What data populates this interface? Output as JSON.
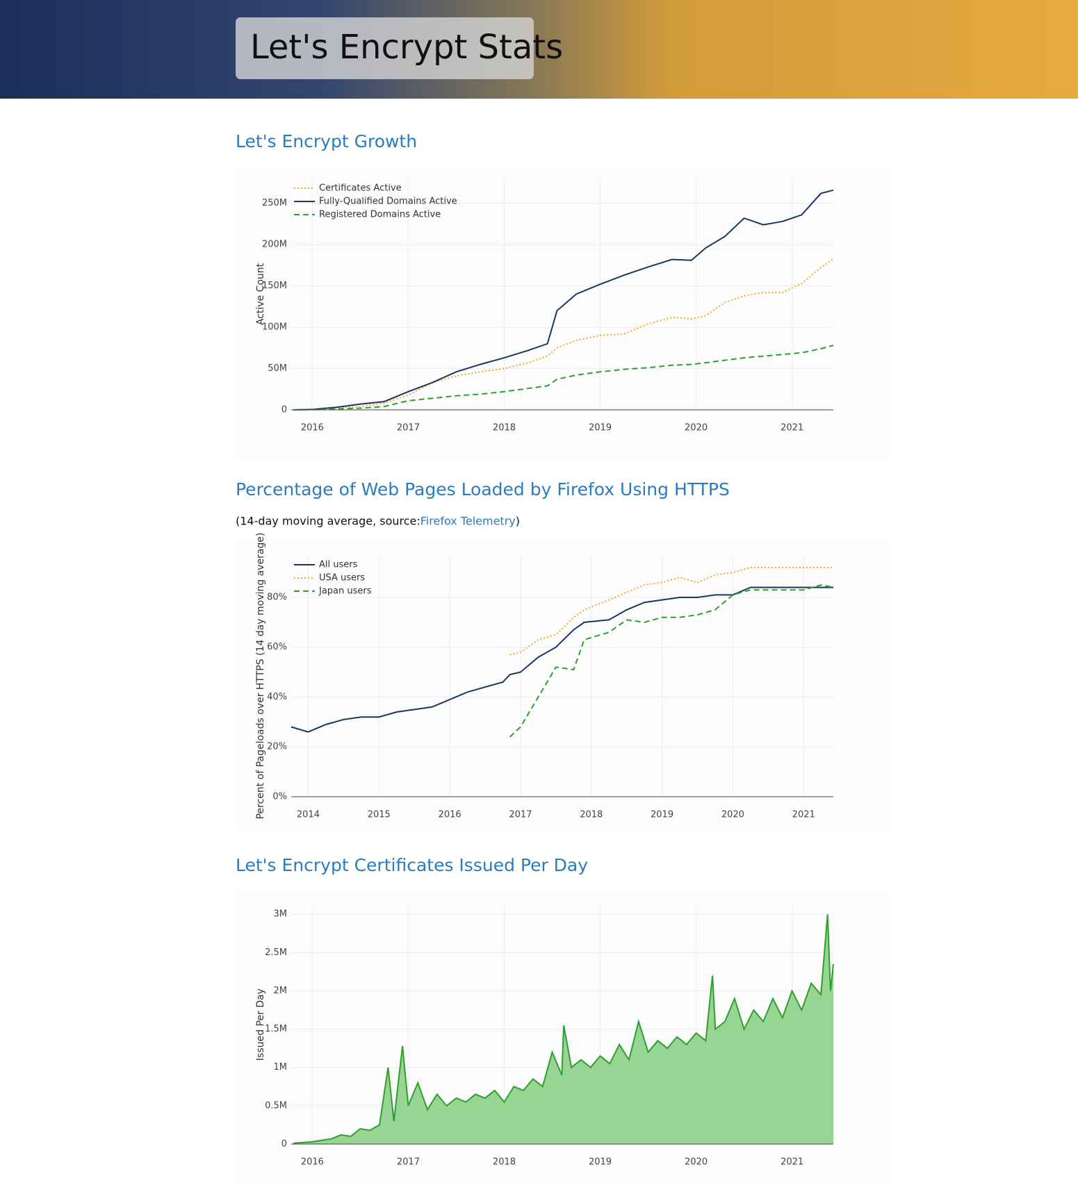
{
  "header": {
    "title": "Let's Encrypt Stats"
  },
  "chart_data": [
    {
      "type": "line",
      "title": "Let's Encrypt Growth",
      "y_label": "Active Count",
      "x": [
        2015.8,
        2016,
        2016.25,
        2016.5,
        2016.75,
        2017,
        2017.25,
        2017.5,
        2017.75,
        2018,
        2018.25,
        2018.45,
        2018.55,
        2018.75,
        2019,
        2019.25,
        2019.5,
        2019.75,
        2019.95,
        2020.1,
        2020.3,
        2020.5,
        2020.7,
        2020.9,
        2021.1,
        2021.3,
        2021.43
      ],
      "xlim": [
        2015.78,
        2021.43
      ],
      "xticks": [
        2016,
        2017,
        2018,
        2019,
        2020,
        2021
      ],
      "ylim": [
        0,
        280000000
      ],
      "yticks": [
        0,
        {
          "value": 50000000,
          "label": "50M"
        },
        {
          "value": 100000000,
          "label": "100M"
        },
        {
          "value": 150000000,
          "label": "150M"
        },
        {
          "value": 200000000,
          "label": "200M"
        },
        {
          "value": 250000000,
          "label": "250M"
        }
      ],
      "grid": true,
      "legend": "top-left",
      "series": [
        {
          "name": "Certificates Active",
          "color": "#f5a623",
          "dash": "dot",
          "values": [
            0,
            300000,
            2000000,
            4000000,
            8000000,
            18000000,
            33000000,
            41000000,
            46000000,
            50000000,
            57000000,
            65000000,
            75000000,
            84000000,
            90000000,
            92000000,
            104000000,
            112000000,
            110000000,
            114000000,
            130000000,
            138000000,
            142000000,
            142000000,
            153000000,
            172000000,
            183000000
          ]
        },
        {
          "name": "Fully-Qualified Domains Active",
          "color": "#1b365d",
          "dash": "solid",
          "values": [
            0,
            500000,
            3000000,
            7000000,
            10000000,
            22000000,
            33000000,
            46000000,
            55000000,
            63000000,
            72000000,
            80000000,
            120000000,
            140000000,
            152000000,
            163000000,
            173000000,
            182000000,
            181000000,
            196000000,
            210000000,
            232000000,
            224000000,
            228000000,
            236000000,
            262000000,
            266000000
          ]
        },
        {
          "name": "Registered Domains Active",
          "color": "#2ca02c",
          "dash": "dash",
          "values": [
            0,
            200000,
            1000000,
            2000000,
            4000000,
            11000000,
            14000000,
            17000000,
            19000000,
            22000000,
            26000000,
            29000000,
            37000000,
            42000000,
            46000000,
            49000000,
            51000000,
            54000000,
            55000000,
            57000000,
            60000000,
            63000000,
            65000000,
            67000000,
            69000000,
            74000000,
            78000000
          ]
        }
      ]
    },
    {
      "type": "line",
      "title": "Percentage of Web Pages Loaded by Firefox Using HTTPS",
      "subtitle": "(14-day moving average, source: ",
      "subtitle_link": "Firefox Telemetry",
      "subtitle_end": ")",
      "y_label": "Percent of Pageloads over HTTPS (14 day moving average)",
      "x": [
        2013.76,
        2014,
        2014.25,
        2014.5,
        2014.75,
        2015,
        2015.25,
        2015.5,
        2015.75,
        2016,
        2016.25,
        2016.5,
        2016.75,
        2016.85,
        2017,
        2017.25,
        2017.5,
        2017.75,
        2017.9,
        2018.25,
        2018.5,
        2018.75,
        2019,
        2019.25,
        2019.5,
        2019.75,
        2020,
        2020.25,
        2020.5,
        2020.75,
        2021,
        2021.25,
        2021.42
      ],
      "xlim": [
        2013.76,
        2021.42
      ],
      "xticks": [
        2014,
        2015,
        2016,
        2017,
        2018,
        2019,
        2020,
        2021
      ],
      "ylim": [
        0,
        97
      ],
      "yticks": [
        {
          "value": 0,
          "label": "0%"
        },
        {
          "value": 20,
          "label": "20%"
        },
        {
          "value": 40,
          "label": "40%"
        },
        {
          "value": 60,
          "label": "60%"
        },
        {
          "value": 80,
          "label": "80%"
        }
      ],
      "grid": true,
      "legend": "top-left",
      "series": [
        {
          "name": "All users",
          "color": "#1b365d",
          "dash": "solid",
          "values": [
            28,
            26,
            29,
            31,
            32,
            32,
            34,
            35,
            36,
            39,
            42,
            44,
            46,
            49,
            50,
            56,
            60,
            67,
            70,
            71,
            75,
            78,
            79,
            80,
            80,
            81,
            81,
            84,
            84,
            84,
            84,
            84,
            84
          ]
        },
        {
          "name": "USA users",
          "color": "#f5a623",
          "dash": "dot",
          "values": [
            null,
            null,
            null,
            null,
            null,
            null,
            null,
            null,
            null,
            null,
            null,
            null,
            null,
            57,
            58,
            63,
            65,
            72,
            75,
            79,
            82,
            85,
            86,
            88,
            86,
            89,
            90,
            92,
            92,
            92,
            92,
            92,
            92
          ]
        },
        {
          "name": "Japan users",
          "color": "#2ca02c",
          "dash": "dash",
          "values": [
            null,
            null,
            null,
            null,
            null,
            null,
            null,
            null,
            null,
            null,
            null,
            null,
            null,
            24,
            28,
            40,
            52,
            51,
            63,
            66,
            71,
            70,
            72,
            72,
            73,
            75,
            81,
            83,
            83,
            83,
            83,
            85,
            84
          ]
        }
      ]
    },
    {
      "type": "area",
      "title": "Let's Encrypt Certificates Issued Per Day",
      "y_label": "Issued Per Day",
      "x": [
        2015.8,
        2015.9,
        2016,
        2016.1,
        2016.2,
        2016.3,
        2016.4,
        2016.5,
        2016.6,
        2016.7,
        2016.79,
        2016.85,
        2016.94,
        2017,
        2017.1,
        2017.2,
        2017.3,
        2017.4,
        2017.5,
        2017.6,
        2017.7,
        2017.8,
        2017.9,
        2018,
        2018.1,
        2018.2,
        2018.3,
        2018.4,
        2018.5,
        2018.6,
        2018.62,
        2018.7,
        2018.8,
        2018.9,
        2019,
        2019.1,
        2019.2,
        2019.3,
        2019.4,
        2019.5,
        2019.6,
        2019.7,
        2019.8,
        2019.9,
        2020,
        2020.1,
        2020.17,
        2020.2,
        2020.3,
        2020.4,
        2020.5,
        2020.6,
        2020.7,
        2020.8,
        2020.9,
        2021,
        2021.1,
        2021.2,
        2021.3,
        2021.37,
        2021.4,
        2021.43
      ],
      "xlim": [
        2015.78,
        2021.43
      ],
      "xticks": [
        2016,
        2017,
        2018,
        2019,
        2020,
        2021
      ],
      "ylim": [
        0,
        3120000
      ],
      "yticks": [
        0,
        {
          "value": 500000,
          "label": "0.5M"
        },
        {
          "value": 1000000,
          "label": "1M"
        },
        {
          "value": 1500000,
          "label": "1.5M"
        },
        {
          "value": 2000000,
          "label": "2M"
        },
        {
          "value": 2500000,
          "label": "2.5M"
        },
        {
          "value": 3000000,
          "label": "3M"
        }
      ],
      "grid": true,
      "color": "#2ca02c",
      "fill_color": "#98d594",
      "values": [
        10000,
        20000,
        30000,
        50000,
        70000,
        120000,
        100000,
        200000,
        180000,
        250000,
        1000000,
        300000,
        1280000,
        500000,
        800000,
        450000,
        650000,
        500000,
        600000,
        550000,
        650000,
        600000,
        700000,
        550000,
        750000,
        700000,
        850000,
        750000,
        1200000,
        900000,
        1550000,
        1000000,
        1100000,
        1000000,
        1150000,
        1050000,
        1300000,
        1100000,
        1600000,
        1200000,
        1350000,
        1250000,
        1400000,
        1300000,
        1450000,
        1350000,
        2200000,
        1500000,
        1600000,
        1900000,
        1500000,
        1750000,
        1600000,
        1900000,
        1650000,
        2000000,
        1750000,
        2100000,
        1950000,
        3000000,
        2000000,
        2350000
      ]
    }
  ]
}
